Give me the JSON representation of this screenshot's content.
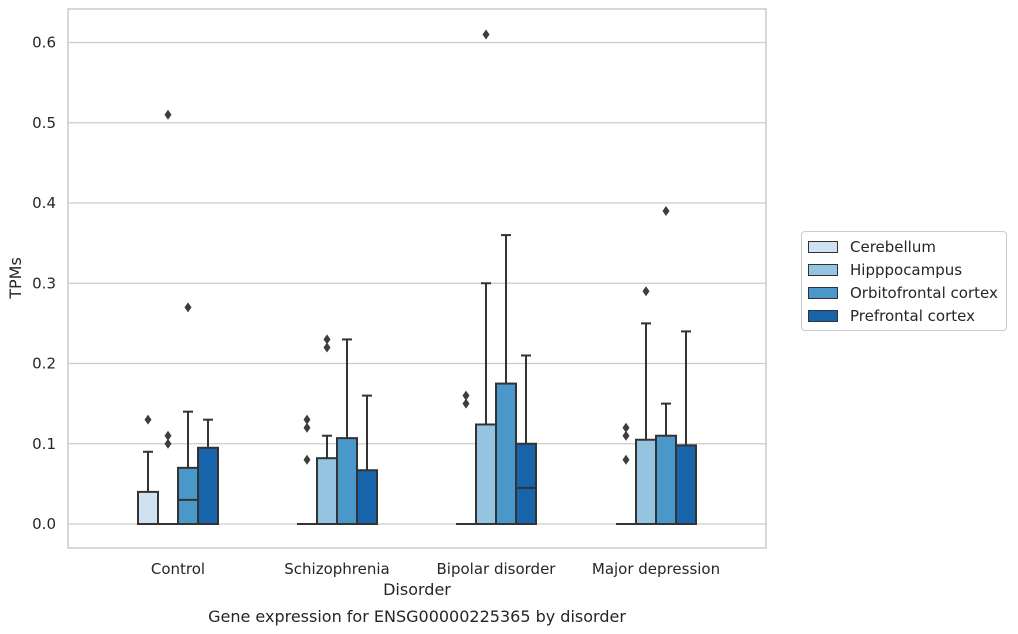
{
  "chart_data": {
    "type": "box",
    "title": "Gene expression for ENSG00000225365 by disorder",
    "xlabel": "Disorder",
    "ylabel": "TPMs",
    "ylim": [
      -0.03,
      0.64
    ],
    "yticks": [
      0.0,
      0.1,
      0.2,
      0.3,
      0.4,
      0.5,
      0.6
    ],
    "ytick_labels": [
      "0.0",
      "0.1",
      "0.2",
      "0.3",
      "0.4",
      "0.5",
      "0.6"
    ],
    "grid": true,
    "legend_position": "right",
    "categories": [
      "Control",
      "Schizophrenia",
      "Bipolar disorder",
      "Major depression"
    ],
    "series": [
      {
        "name": "Cerebellum",
        "color": "#d0e1f2",
        "boxes": [
          {
            "q1": 0.0,
            "median": 0.0,
            "q3": 0.04,
            "whisker_low": 0.0,
            "whisker_high": 0.09,
            "outliers": [
              0.13
            ]
          },
          {
            "q1": 0.0,
            "median": 0.0,
            "q3": 0.0,
            "whisker_low": 0.0,
            "whisker_high": 0.0,
            "outliers": [
              0.08,
              0.12,
              0.13
            ]
          },
          {
            "q1": 0.0,
            "median": 0.0,
            "q3": 0.0,
            "whisker_low": 0.0,
            "whisker_high": 0.0,
            "outliers": [
              0.15,
              0.16
            ]
          },
          {
            "q1": 0.0,
            "median": 0.0,
            "q3": 0.0,
            "whisker_low": 0.0,
            "whisker_high": 0.0,
            "outliers": [
              0.08,
              0.11,
              0.12
            ]
          }
        ]
      },
      {
        "name": "Hipppocampus",
        "color": "#94c4df",
        "boxes": [
          {
            "q1": 0.0,
            "median": 0.0,
            "q3": 0.0,
            "whisker_low": 0.0,
            "whisker_high": 0.0,
            "outliers": [
              0.1,
              0.11,
              0.51
            ]
          },
          {
            "q1": 0.0,
            "median": 0.0,
            "q3": 0.082,
            "whisker_low": 0.0,
            "whisker_high": 0.11,
            "outliers": [
              0.22,
              0.23
            ]
          },
          {
            "q1": 0.0,
            "median": 0.0,
            "q3": 0.124,
            "whisker_low": 0.0,
            "whisker_high": 0.3,
            "outliers": [
              0.61
            ]
          },
          {
            "q1": 0.0,
            "median": 0.0,
            "q3": 0.105,
            "whisker_low": 0.0,
            "whisker_high": 0.25,
            "outliers": [
              0.29
            ]
          }
        ]
      },
      {
        "name": "Orbitofrontal cortex",
        "color": "#4a98c9",
        "boxes": [
          {
            "q1": 0.0,
            "median": 0.03,
            "q3": 0.07,
            "whisker_low": 0.0,
            "whisker_high": 0.14,
            "outliers": [
              0.27
            ]
          },
          {
            "q1": 0.0,
            "median": 0.0,
            "q3": 0.107,
            "whisker_low": 0.0,
            "whisker_high": 0.23,
            "outliers": []
          },
          {
            "q1": 0.0,
            "median": 0.0,
            "q3": 0.175,
            "whisker_low": 0.0,
            "whisker_high": 0.36,
            "outliers": []
          },
          {
            "q1": 0.0,
            "median": 0.0,
            "q3": 0.11,
            "whisker_low": 0.0,
            "whisker_high": 0.15,
            "outliers": [
              0.39
            ]
          }
        ]
      },
      {
        "name": "Prefrontal cortex",
        "color": "#1764ab",
        "boxes": [
          {
            "q1": 0.0,
            "median": 0.0,
            "q3": 0.095,
            "whisker_low": 0.0,
            "whisker_high": 0.13,
            "outliers": []
          },
          {
            "q1": 0.0,
            "median": 0.0,
            "q3": 0.067,
            "whisker_low": 0.0,
            "whisker_high": 0.16,
            "outliers": []
          },
          {
            "q1": 0.0,
            "median": 0.045,
            "q3": 0.1,
            "whisker_low": 0.0,
            "whisker_high": 0.21,
            "outliers": []
          },
          {
            "q1": 0.0,
            "median": 0.0,
            "q3": 0.098,
            "whisker_low": 0.0,
            "whisker_high": 0.24,
            "outliers": []
          }
        ]
      }
    ]
  }
}
